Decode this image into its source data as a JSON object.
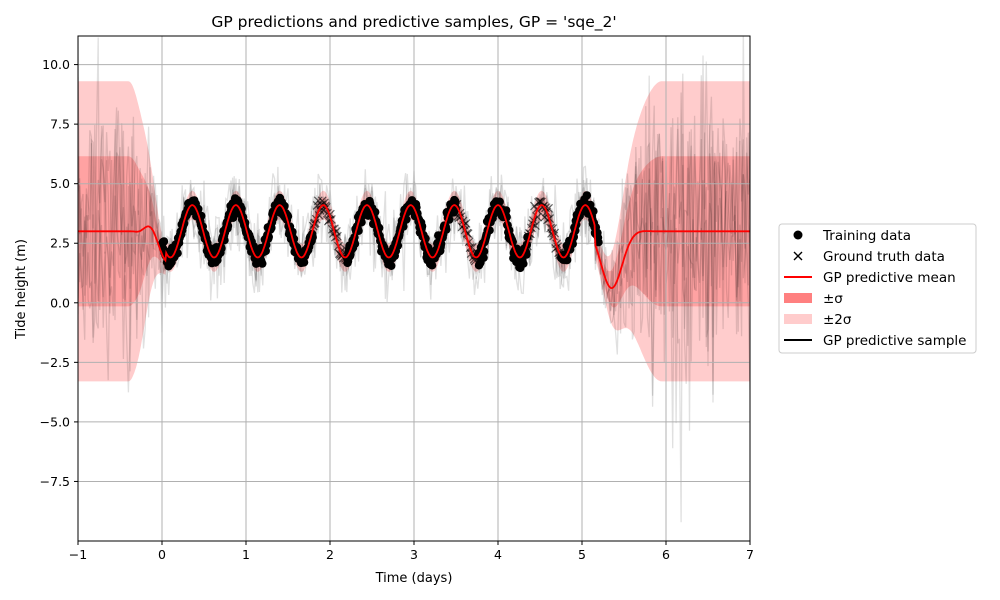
{
  "chart_data": {
    "type": "line",
    "title": "GP predictions and predictive samples, GP = 'sqe_2'",
    "xlabel": "Time (days)",
    "ylabel": "Tide height (m)",
    "xlim": [
      -1,
      7
    ],
    "ylim": [
      -10,
      11.2
    ],
    "grid": true,
    "legend_placement": "right (outside plot)",
    "x_ticks": [
      -1,
      0,
      1,
      2,
      3,
      4,
      5,
      6,
      7
    ],
    "x_tick_labels": [
      "−1",
      "0",
      "1",
      "2",
      "3",
      "4",
      "5",
      "6",
      "7"
    ],
    "y_ticks": [
      10.0,
      7.5,
      5.0,
      2.5,
      0.0,
      -2.5,
      -5.0,
      -7.5
    ],
    "y_tick_labels": [
      "10.0",
      "7.5",
      "5.0",
      "2.5",
      "0.0",
      "−2.5",
      "−5.0",
      "−7.5"
    ],
    "mean_outside_data": 3.0,
    "sigma_outside_data": 3.15,
    "mean_dip_min": {
      "x": 5.35,
      "y": -0.1
    },
    "band_min_2sigma": {
      "x": 5.45,
      "y": -4.9
    },
    "training_range": [
      0.0,
      5.2
    ],
    "ground_truth_segments": [
      [
        1.8,
        2.2
      ],
      [
        3.5,
        3.75
      ],
      [
        4.35,
        4.75
      ]
    ],
    "tide_oscillation": {
      "mean": 3.0,
      "amplitude": 1.1,
      "period_days": 0.52,
      "range": [
        1.3,
        4.4
      ]
    },
    "colors": {
      "mean": "#ff0000",
      "sigma_band": "#ff8080",
      "two_sigma_band": "#ffcccc",
      "training": "#000000",
      "ground_truth": "#000000",
      "sample": "#000000",
      "grid": "#b0b0b0"
    },
    "legend": [
      {
        "label": "Training data",
        "marker": "dot"
      },
      {
        "label": "Ground truth data",
        "marker": "x"
      },
      {
        "label": "GP predictive mean",
        "marker": "red-line"
      },
      {
        "label": "±σ",
        "marker": "sigma-patch"
      },
      {
        "label": "±2σ",
        "marker": "two-sigma-patch"
      },
      {
        "label": "GP predictive sample",
        "marker": "black-line"
      }
    ]
  }
}
